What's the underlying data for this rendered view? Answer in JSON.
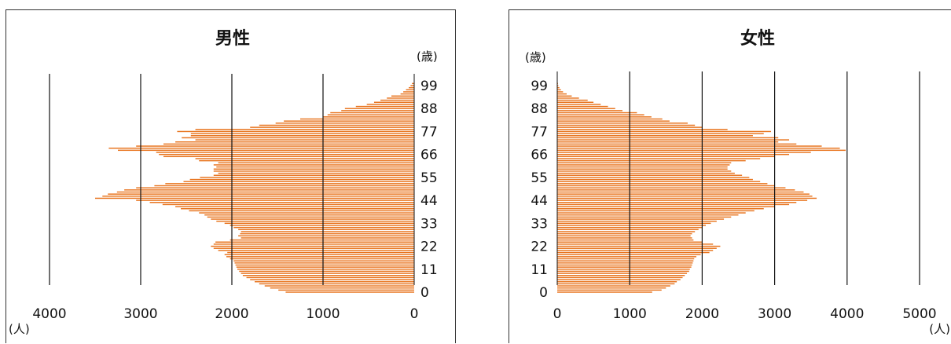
{
  "colors": {
    "bar": "#e8741e",
    "grid": "#111111",
    "frame": "#333333"
  },
  "chart_data": [
    {
      "type": "bar",
      "orientation": "horizontal",
      "title": "男性",
      "ylabel": "(歳)",
      "xlabel": "(人)",
      "xlim": [
        0,
        4000
      ],
      "x_direction": "reversed",
      "grid": "vertical",
      "xticks": [
        4000,
        3000,
        2000,
        1000,
        0
      ],
      "yticks": [
        0,
        11,
        22,
        33,
        44,
        55,
        66,
        77,
        88,
        99
      ],
      "ages_from": 0,
      "ages_to": 100,
      "values": [
        1410,
        1490,
        1580,
        1640,
        1700,
        1750,
        1800,
        1840,
        1880,
        1900,
        1920,
        1940,
        1950,
        1960,
        1970,
        1980,
        2020,
        2060,
        2080,
        2050,
        2150,
        2200,
        2230,
        2200,
        2180,
        2020,
        1900,
        1930,
        1910,
        1900,
        1930,
        1980,
        2020,
        2080,
        2170,
        2230,
        2270,
        2300,
        2360,
        2470,
        2560,
        2620,
        2760,
        2900,
        3050,
        3500,
        3420,
        3360,
        3260,
        3180,
        3050,
        2850,
        2730,
        2530,
        2460,
        2350,
        2200,
        2150,
        2200,
        2200,
        2170,
        2200,
        2150,
        2360,
        2400,
        2750,
        2800,
        2830,
        3250,
        3350,
        3050,
        2750,
        2620,
        2400,
        2550,
        2450,
        2450,
        2600,
        2400,
        1800,
        1700,
        1520,
        1430,
        1250,
        1000,
        950,
        920,
        800,
        760,
        640,
        520,
        440,
        370,
        300,
        250,
        150,
        120,
        90,
        60,
        40,
        25
      ]
    },
    {
      "type": "bar",
      "orientation": "horizontal",
      "title": "女性",
      "ylabel": "(歳)",
      "xlabel": "(人)",
      "xlim": [
        0,
        5000
      ],
      "grid": "vertical",
      "xticks": [
        0,
        1000,
        2000,
        3000,
        4000,
        5000
      ],
      "yticks": [
        0,
        11,
        22,
        33,
        44,
        55,
        66,
        77,
        88,
        99
      ],
      "ages_from": 0,
      "ages_to": 100,
      "values": [
        1310,
        1440,
        1500,
        1560,
        1620,
        1650,
        1700,
        1730,
        1760,
        1790,
        1820,
        1830,
        1850,
        1860,
        1870,
        1880,
        1890,
        1920,
        1980,
        2100,
        2150,
        2200,
        2250,
        2150,
        2000,
        1880,
        1860,
        1840,
        1860,
        1900,
        1950,
        2000,
        2050,
        2120,
        2200,
        2300,
        2400,
        2500,
        2600,
        2720,
        2850,
        3000,
        3200,
        3300,
        3450,
        3580,
        3520,
        3480,
        3400,
        3280,
        3150,
        3000,
        2900,
        2800,
        2700,
        2650,
        2550,
        2450,
        2400,
        2350,
        2350,
        2380,
        2400,
        2600,
        2800,
        3000,
        3200,
        3500,
        3980,
        3900,
        3650,
        3300,
        3050,
        3200,
        3050,
        2700,
        2850,
        2950,
        2350,
        2000,
        1900,
        1800,
        1550,
        1450,
        1300,
        1200,
        1100,
        900,
        800,
        700,
        600,
        500,
        420,
        300,
        200,
        130,
        80,
        50,
        30,
        15,
        10
      ]
    }
  ]
}
